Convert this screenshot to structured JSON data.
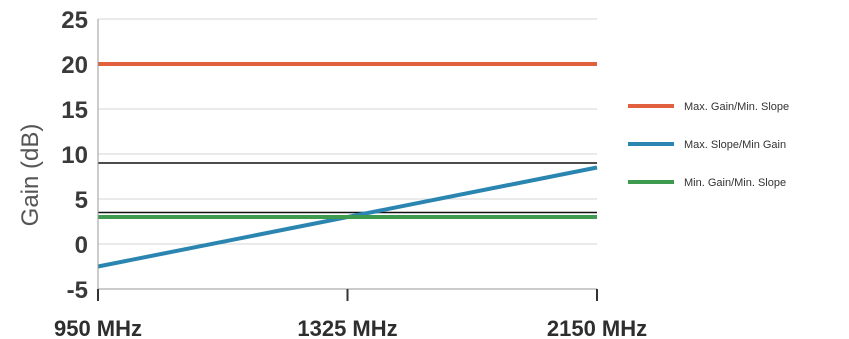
{
  "chart_data": {
    "type": "line",
    "ylabel": "Gain (dB)",
    "ylim": [
      -5,
      25
    ],
    "yticks": [
      25,
      20,
      15,
      10,
      5,
      0,
      -5
    ],
    "xticks": [
      {
        "label": "950 MHz",
        "pos": 0
      },
      {
        "label": "1325 MHz",
        "pos": 0.5
      },
      {
        "label": "2150 MHz",
        "pos": 1
      }
    ],
    "xlim": [
      0,
      1
    ],
    "grid": true,
    "legend_position": "right",
    "reference_lines": [
      9,
      3.5
    ],
    "series": [
      {
        "name": "Max. Gain/Min. Slope",
        "color": "#e0603f",
        "x": [
          0,
          1
        ],
        "y": [
          20,
          20
        ]
      },
      {
        "name": "Max. Slope/Min Gain",
        "color": "#2a86b0",
        "x": [
          0,
          1
        ],
        "y": [
          -2.5,
          8.5
        ]
      },
      {
        "name": "Min. Gain/Min. Slope",
        "color": "#3e9a4e",
        "x": [
          0,
          1
        ],
        "y": [
          3,
          3
        ]
      }
    ]
  }
}
